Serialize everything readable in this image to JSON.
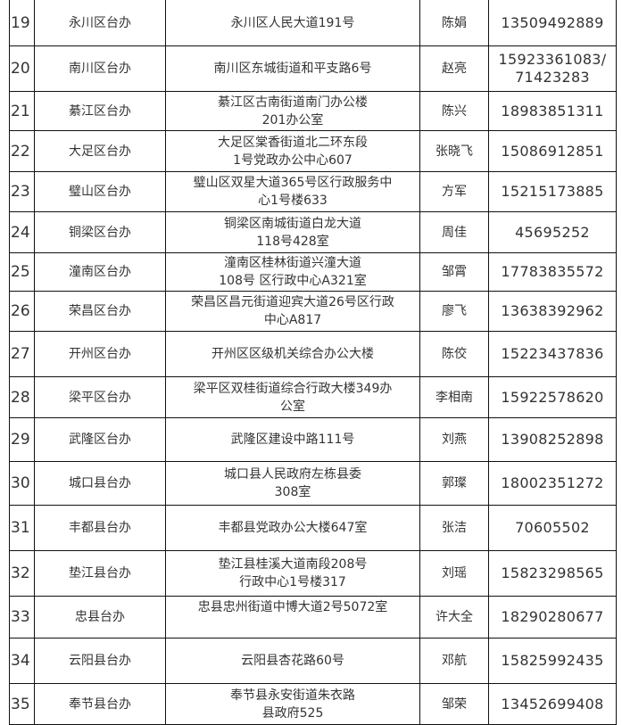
{
  "rows": [
    {
      "no": "19",
      "office": "永川区台办",
      "address": "永川区人民大道191号",
      "contact": "陈娟",
      "phone": "13509492889"
    },
    {
      "no": "20",
      "office": "南川区台办",
      "address": "南川区东城街道和平支路6号",
      "contact": "赵亮",
      "phone": "15923361083/\n71423283"
    },
    {
      "no": "21",
      "office": "綦江区台办",
      "address": "綦江区古南街道南门办公楼\n201办公室",
      "contact": "陈兴",
      "phone": "18983851311"
    },
    {
      "no": "22",
      "office": "大足区台办",
      "address": "大足区棠香街道北二环东段\n1号党政办公中心607",
      "contact": "张晓飞",
      "phone": "15086912851"
    },
    {
      "no": "23",
      "office": "璧山区台办",
      "address": "璧山区双星大道365号区行政服务中\n心1号楼633",
      "contact": "方军",
      "phone": "15215173885"
    },
    {
      "no": "24",
      "office": "铜梁区台办",
      "address": "铜梁区南城街道白龙大道\n118号428室",
      "contact": "周佳",
      "phone": "45695252"
    },
    {
      "no": "25",
      "office": "潼南区台办",
      "address": "潼南区桂林街道兴潼大道\n108号 区行政中心A321室",
      "contact": "邹霄",
      "phone": "17783835572"
    },
    {
      "no": "26",
      "office": "荣昌区台办",
      "address": "荣昌区昌元街道迎宾大道26号区行政\n中心A817",
      "contact": "廖飞",
      "phone": "13638392962"
    },
    {
      "no": "27",
      "office": "开州区台办",
      "address": "开州区区级机关综合办公大楼",
      "contact": "陈佼",
      "phone": "15223437836"
    },
    {
      "no": "28",
      "office": "梁平区台办",
      "address": "梁平区双桂街道综合行政大楼349办\n公室",
      "contact": "李相南",
      "phone": "15922578620"
    },
    {
      "no": "29",
      "office": "武隆区台办",
      "address": "武隆区建设中路111号",
      "contact": "刘燕",
      "phone": "13908252898"
    },
    {
      "no": "30",
      "office": "城口县台办",
      "address": "城口县人民政府左栋县委\n308室",
      "contact": "郭璨",
      "phone": "18002351272"
    },
    {
      "no": "31",
      "office": "丰都县台办",
      "address": "丰都县党政办公大楼647室",
      "contact": "张洁",
      "phone": "70605502"
    },
    {
      "no": "32",
      "office": "垫江县台办",
      "address": "垫江县桂溪大道南段208号\n行政中心1号楼317",
      "contact": "刘瑶",
      "phone": "15823298565"
    },
    {
      "no": "33",
      "office": "忠县台办",
      "address": "忠县忠州街道中博大道2号5072室",
      "contact": "许大全",
      "phone": "18290280677"
    },
    {
      "no": "34",
      "office": "云阳县台办",
      "address": "云阳县杏花路60号",
      "contact": "邓航",
      "phone": "15825992435"
    },
    {
      "no": "35",
      "office": "奉节县台办",
      "address": "奉节县永安街道朱衣路\n县政府525",
      "contact": "邹荣",
      "phone": "13452699408"
    }
  ]
}
